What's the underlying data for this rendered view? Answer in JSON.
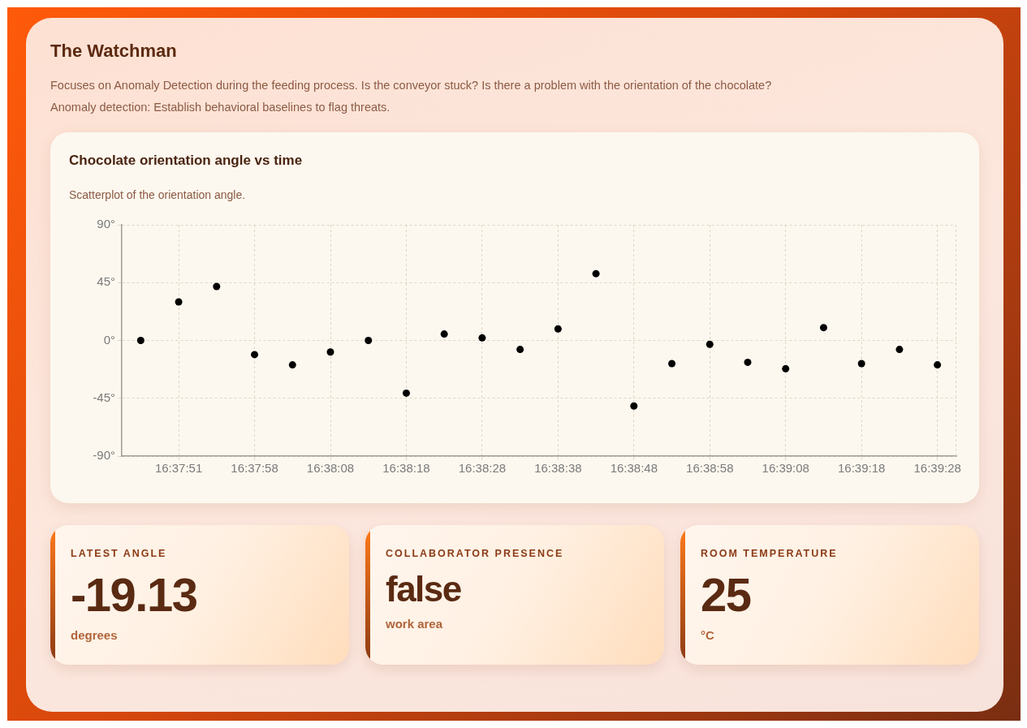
{
  "chart_data": [
    {
      "type": "other",
      "title": "The Watchman",
      "annotations": [
        "Focuses on Anomaly Detection during the feeding process. Is the conveyor stuck? Is there a problem with the orientation of the chocolate?",
        "Anomaly detection: Establish behavioral baselines to flag threats."
      ]
    },
    {
      "type": "scatter",
      "title": "Chocolate orientation angle vs time",
      "subtitle": "Scatterplot of the orientation angle.",
      "categories": [
        null,
        "16:37:51",
        null,
        "16:37:58",
        null,
        "16:38:08",
        null,
        "16:38:18",
        null,
        "16:38:28",
        null,
        "16:38:38",
        null,
        "16:38:48",
        null,
        "16:38:58",
        null,
        "16:39:08",
        null,
        "16:39:18",
        null,
        "16:39:28"
      ],
      "values": [
        0,
        30,
        42,
        -11,
        -19,
        -9,
        0,
        -41,
        5,
        2,
        -7,
        9,
        52,
        -51,
        -18,
        -3,
        -17,
        -22,
        10,
        -18,
        -7,
        -19
      ],
      "color": "#000000",
      "ylim": [
        -90,
        90
      ],
      "yticks": [
        {
          "value": -90,
          "label": "-90°"
        },
        {
          "value": -45,
          "label": "-45°"
        },
        {
          "value": 0,
          "label": "0°"
        },
        {
          "value": 45,
          "label": "45°"
        },
        {
          "value": 90,
          "label": "90°"
        }
      ],
      "grid": true,
      "marker": "circle"
    },
    {
      "type": "other",
      "title": "LATEST ANGLE",
      "annotations": [
        "-19.13",
        "degrees"
      ]
    },
    {
      "type": "other",
      "title": "COLLABORATOR PRESENCE",
      "annotations": [
        "false",
        "work area"
      ]
    },
    {
      "type": "other",
      "title": "ROOM TEMPERATURE",
      "annotations": [
        "25",
        "°C"
      ]
    }
  ]
}
